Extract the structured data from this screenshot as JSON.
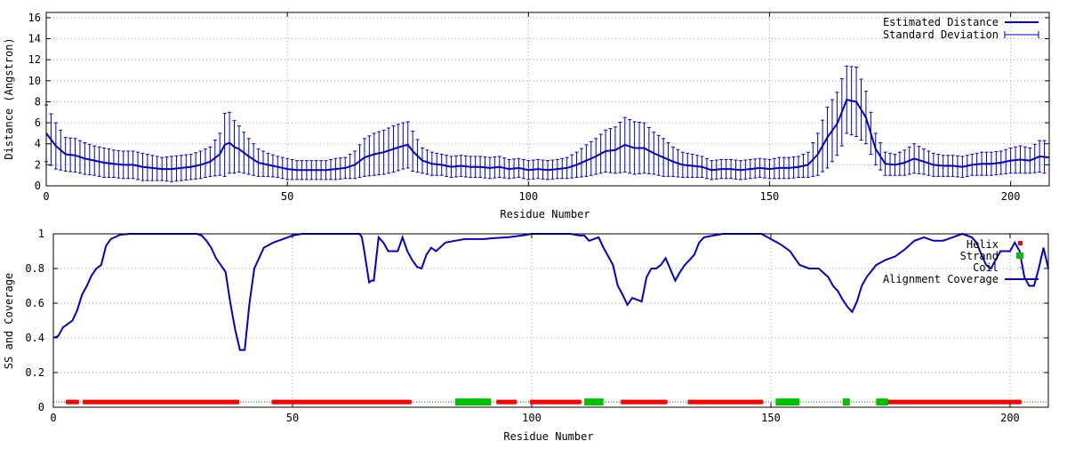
{
  "colors": {
    "line": "#0000c8",
    "helix": "#ff0000",
    "strand": "#00c000",
    "coil": "#008000",
    "grid": "#a0a0a0"
  },
  "chart_data": [
    {
      "type": "line",
      "xlabel": "Residue Number",
      "ylabel": "Distance (Angstron)",
      "xlim": [
        0,
        208
      ],
      "ylim": [
        0,
        16.5
      ],
      "xticks": [
        0,
        50,
        100,
        150,
        200
      ],
      "yticks": [
        0,
        2,
        4,
        6,
        8,
        10,
        12,
        14,
        16
      ],
      "grid": true,
      "legend_position": "top-right",
      "legend": [
        "Estimated Distance",
        "Standard Deviation"
      ],
      "series": [
        {
          "name": "Estimated Distance",
          "x": [
            0,
            2,
            4,
            6,
            8,
            10,
            12,
            14,
            16,
            18,
            20,
            22,
            24,
            26,
            28,
            30,
            32,
            34,
            36,
            37,
            38,
            39,
            40,
            42,
            44,
            46,
            48,
            50,
            52,
            54,
            56,
            58,
            60,
            62,
            64,
            66,
            68,
            70,
            72,
            74,
            75,
            76,
            78,
            80,
            82,
            84,
            86,
            88,
            90,
            92,
            94,
            96,
            98,
            100,
            102,
            104,
            106,
            108,
            110,
            112,
            114,
            116,
            118,
            120,
            122,
            124,
            126,
            128,
            130,
            132,
            134,
            136,
            138,
            140,
            142,
            144,
            146,
            148,
            150,
            152,
            154,
            156,
            158,
            160,
            162,
            164,
            165,
            166,
            168,
            170,
            172,
            174,
            176,
            178,
            180,
            182,
            184,
            186,
            188,
            190,
            192,
            194,
            196,
            198,
            200,
            202,
            204,
            206,
            208
          ],
          "y": [
            5.0,
            3.8,
            3.0,
            2.9,
            2.6,
            2.4,
            2.2,
            2.1,
            2.0,
            2.0,
            1.8,
            1.7,
            1.6,
            1.6,
            1.7,
            1.8,
            2.0,
            2.3,
            3.0,
            3.9,
            4.1,
            3.7,
            3.5,
            2.8,
            2.2,
            2.0,
            1.8,
            1.6,
            1.5,
            1.5,
            1.5,
            1.5,
            1.6,
            1.7,
            2.0,
            2.7,
            3.0,
            3.2,
            3.5,
            3.8,
            3.9,
            3.3,
            2.4,
            2.1,
            2.0,
            1.8,
            1.9,
            1.8,
            1.8,
            1.7,
            1.8,
            1.6,
            1.7,
            1.5,
            1.6,
            1.5,
            1.6,
            1.7,
            2.0,
            2.4,
            2.8,
            3.3,
            3.4,
            3.9,
            3.6,
            3.6,
            3.1,
            2.7,
            2.3,
            2.0,
            1.9,
            1.8,
            1.5,
            1.6,
            1.6,
            1.5,
            1.6,
            1.7,
            1.6,
            1.7,
            1.7,
            1.8,
            2.0,
            3.0,
            4.6,
            5.9,
            7.0,
            8.2,
            8.0,
            6.5,
            3.5,
            2.1,
            2.0,
            2.2,
            2.6,
            2.3,
            2.0,
            1.9,
            1.9,
            1.8,
            2.0,
            2.1,
            2.1,
            2.2,
            2.4,
            2.5,
            2.4,
            2.8,
            2.7
          ],
          "sd": [
            2.7,
            2.2,
            1.6,
            1.6,
            1.5,
            1.4,
            1.4,
            1.3,
            1.3,
            1.3,
            1.3,
            1.2,
            1.1,
            1.2,
            1.2,
            1.2,
            1.3,
            1.4,
            2.0,
            3.0,
            2.9,
            2.5,
            2.2,
            1.7,
            1.3,
            1.1,
            1.0,
            1.0,
            0.9,
            0.9,
            0.9,
            0.9,
            1.0,
            1.0,
            1.3,
            1.8,
            2.0,
            2.1,
            2.2,
            2.2,
            2.2,
            1.9,
            1.2,
            1.1,
            1.0,
            1.0,
            1.0,
            1.0,
            1.0,
            1.0,
            1.0,
            0.9,
            0.9,
            0.9,
            0.9,
            0.9,
            0.9,
            1.0,
            1.2,
            1.5,
            1.7,
            2.0,
            2.2,
            2.6,
            2.5,
            2.4,
            2.0,
            1.8,
            1.4,
            1.2,
            1.1,
            1.0,
            0.9,
            0.9,
            0.9,
            0.9,
            0.9,
            0.9,
            0.9,
            1.0,
            1.0,
            1.0,
            1.2,
            2.0,
            2.9,
            3.0,
            3.2,
            3.2,
            3.3,
            2.5,
            1.5,
            1.1,
            1.0,
            1.2,
            1.4,
            1.2,
            1.1,
            1.0,
            1.0,
            1.0,
            1.0,
            1.1,
            1.1,
            1.1,
            1.2,
            1.3,
            1.2,
            1.5,
            1.6
          ]
        }
      ]
    },
    {
      "type": "line",
      "xlabel": "Residue Number",
      "ylabel": "SS and Coverage",
      "xlim": [
        0,
        208
      ],
      "ylim": [
        0,
        1.0
      ],
      "xticks": [
        0,
        50,
        100,
        150,
        200
      ],
      "yticks": [
        0,
        0.2,
        0.4,
        0.6,
        0.8,
        1
      ],
      "ytick_labels": [
        "0",
        "0.2",
        "0.4",
        "0.6",
        "0.8",
        "1"
      ],
      "grid": true,
      "legend_position": "top-right",
      "legend": [
        "Helix",
        "Strand",
        "Coil",
        "Alignment Coverage"
      ],
      "series": [
        {
          "name": "Alignment Coverage",
          "x": [
            0,
            1,
            2,
            3,
            4,
            5,
            6,
            7,
            8,
            9,
            10,
            11,
            12,
            14,
            16,
            18,
            20,
            22,
            24,
            26,
            28,
            30,
            31,
            32,
            33,
            34,
            35,
            36,
            37,
            38,
            39,
            40,
            41,
            42,
            44,
            46,
            48,
            50,
            52,
            55,
            60,
            62,
            64,
            64.5,
            65,
            66,
            66.5,
            67,
            68,
            69,
            70,
            71,
            72,
            73,
            74,
            75,
            76,
            77,
            78,
            79,
            80,
            82,
            84,
            86,
            88,
            90,
            92,
            95,
            98,
            100,
            104,
            108,
            110,
            111,
            112,
            114,
            115,
            116,
            117,
            118,
            119,
            120,
            121,
            122,
            123,
            124,
            125,
            126,
            127,
            128,
            130,
            131,
            132,
            133,
            134,
            135,
            136,
            138,
            140,
            142,
            144,
            148,
            150,
            152,
            154,
            156,
            158,
            160,
            162,
            163,
            164,
            165,
            166,
            167,
            168,
            169,
            170,
            172,
            174,
            176,
            178,
            180,
            182,
            184,
            186,
            188,
            190,
            192,
            193,
            194,
            195,
            196,
            198,
            200,
            201,
            202,
            203,
            204,
            205,
            206,
            207,
            208
          ],
          "y": [
            0.4,
            0.41,
            0.46,
            0.48,
            0.5,
            0.56,
            0.65,
            0.7,
            0.76,
            0.8,
            0.82,
            0.93,
            0.97,
            0.995,
            1.0,
            1.0,
            1.0,
            1.0,
            1.0,
            1.0,
            1.0,
            1.0,
            0.99,
            0.96,
            0.92,
            0.86,
            0.82,
            0.78,
            0.6,
            0.45,
            0.33,
            0.33,
            0.6,
            0.8,
            0.92,
            0.95,
            0.97,
            0.99,
            1.0,
            1.0,
            1.0,
            1.0,
            1.0,
            0.98,
            0.9,
            0.72,
            0.73,
            0.73,
            0.98,
            0.95,
            0.9,
            0.9,
            0.9,
            0.98,
            0.9,
            0.85,
            0.81,
            0.8,
            0.88,
            0.92,
            0.9,
            0.95,
            0.96,
            0.97,
            0.97,
            0.97,
            0.975,
            0.98,
            0.99,
            1.0,
            1.0,
            1.0,
            0.99,
            0.99,
            0.96,
            0.98,
            0.92,
            0.87,
            0.82,
            0.7,
            0.65,
            0.59,
            0.63,
            0.62,
            0.61,
            0.75,
            0.8,
            0.8,
            0.82,
            0.86,
            0.73,
            0.78,
            0.82,
            0.85,
            0.88,
            0.95,
            0.98,
            0.99,
            1.0,
            1.0,
            1.0,
            1.0,
            0.97,
            0.94,
            0.9,
            0.82,
            0.8,
            0.8,
            0.75,
            0.7,
            0.67,
            0.62,
            0.58,
            0.55,
            0.61,
            0.7,
            0.75,
            0.82,
            0.85,
            0.87,
            0.91,
            0.96,
            0.98,
            0.96,
            0.96,
            0.98,
            1.0,
            0.98,
            0.95,
            0.88,
            0.82,
            0.8,
            0.9,
            0.9,
            0.95,
            0.9,
            0.75,
            0.7,
            0.7,
            0.8,
            0.92,
            0.8
          ],
          "helix_ranges": [
            [
              3,
              5
            ],
            [
              6.5,
              38.5
            ],
            [
              46,
              74.5
            ],
            [
              93,
              96.5
            ],
            [
              100,
              110
            ],
            [
              119,
              128
            ],
            [
              133,
              148
            ],
            [
              172.5,
              202
            ]
          ],
          "strand_ranges": [
            [
              84,
              91.5
            ],
            [
              111,
              115
            ],
            [
              151,
              156
            ],
            [
              165,
              166.5
            ],
            [
              172,
              174.5
            ]
          ],
          "coil_range": [
            0,
            208
          ]
        }
      ]
    }
  ]
}
